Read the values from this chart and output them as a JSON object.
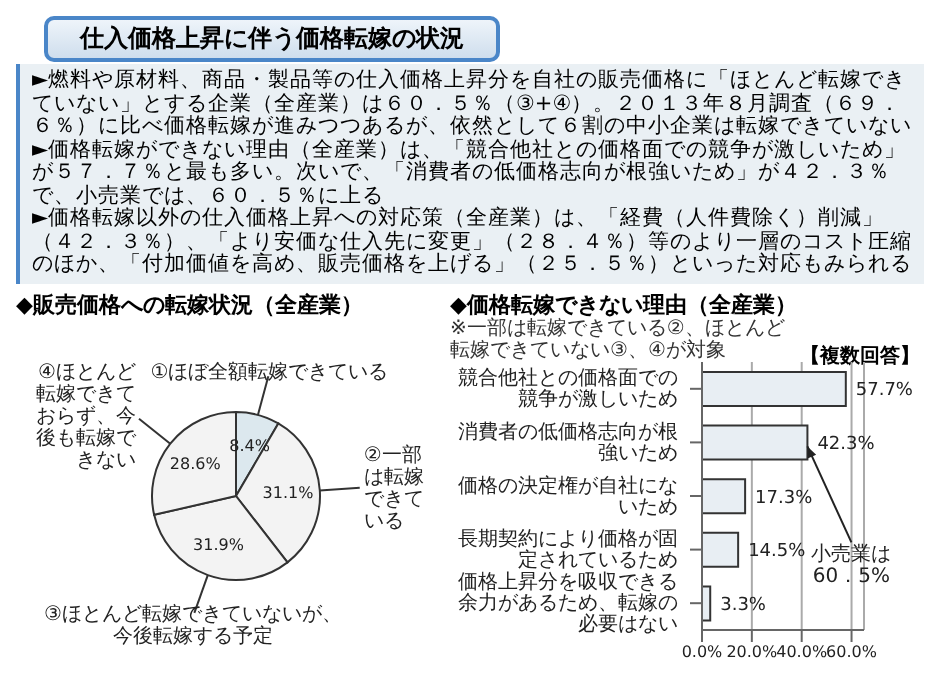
{
  "chart_data": [
    {
      "type": "other",
      "title": "仕入価格上昇に伴う価格転嫁の状況",
      "annotations": [
        "►燃料や原材料、商品・製品等の仕入価格上昇分を自社の販売価格に「ほとんど転嫁できていない」とする企業（全産業）は６０．５％（③+④）。２０１３年８月調査（６９．６％）に比べ価格転嫁が進みつつあるが、依然として６割の中小企業は転嫁できていない",
        "►価格転嫁ができない理由（全産業）は、「競合他社との価格面での競争が激しいため」が５７．７％と最も多い。次いで、「消費者の低価格志向が根強いため」が４２．３％で、小売業では、６０．５％に上る",
        "►価格転嫁以外の仕入価格上昇への対応策（全産業）は、「経費（人件費除く）削減」（４２．３％）、「より安価な仕入先に変更」（２８．４％）等のより一層のコスト圧縮のほか、「付加価値を高め、販売価格を上げる」（２５．５％）といった対応もみられる"
      ]
    },
    {
      "type": "pie",
      "title": "◆販売価格への転嫁状況（全産業）",
      "categories": [
        "①ほぼ全額転嫁できている",
        "②一部は転嫁できている",
        "③ほとんど転嫁できていないが、今後転嫁する予定",
        "④ほとんど転嫁できておらず、今後も転嫁できない"
      ],
      "values": [
        8.4,
        31.1,
        31.9,
        28.6
      ],
      "value_labels": [
        "8.4%",
        "31.1%",
        "31.9%",
        "28.6%"
      ],
      "colors": [
        "#dce8ee",
        "#f3f3f3",
        "#f3f3f3",
        "#f3f3f3"
      ]
    },
    {
      "type": "bar",
      "orientation": "horizontal",
      "title": "◆価格転嫁できない理由（全産業）",
      "subtitle": "※一部は転嫁できている②、ほとんど転嫁できていない③、④が対象",
      "categories": [
        "競合他社との価格面での競争が激しいため",
        "消費者の低価格志向が根強いため",
        "価格の決定権が自社にないため",
        "長期契約により価格が固定されているため",
        "価格上昇分を吸収できる余力があるため、転嫁の必要はない"
      ],
      "values": [
        57.7,
        42.3,
        17.3,
        14.5,
        3.3
      ],
      "value_labels": [
        "57.7%",
        "42.3%",
        "17.3%",
        "14.5%",
        "3.3%"
      ],
      "color": "#e8eef3",
      "xlim": [
        0,
        65
      ],
      "xticks": [
        {
          "value": 0,
          "label": "0.0%"
        },
        {
          "value": 20,
          "label": "20.0%"
        },
        {
          "value": 40,
          "label": "40.0%"
        },
        {
          "value": 60,
          "label": "60.0%"
        }
      ],
      "grid": "x",
      "annotations": [
        "【複数回答】",
        {
          "text": "小売業は\n60．5%",
          "x": 42.3,
          "y": "消費者の低価格志向が根強いため"
        }
      ]
    }
  ]
}
